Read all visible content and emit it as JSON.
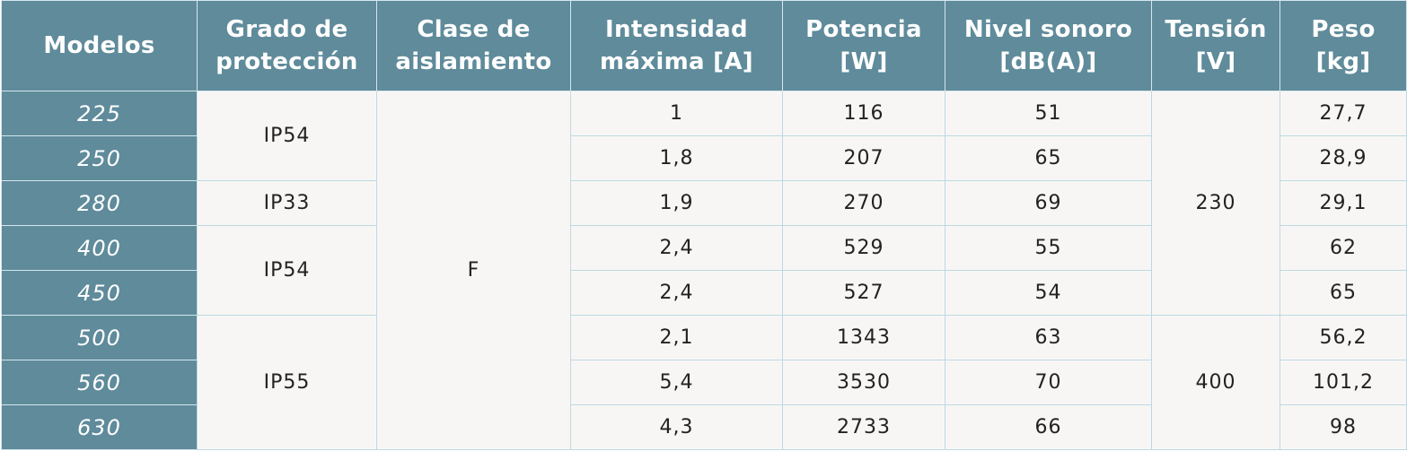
{
  "table": {
    "headers": [
      "Modelos",
      "Grado de\nprotección",
      "Clase de\naislamiento",
      "Intensidad\nmáxima [A]",
      "Potencia\n[W]",
      "Nivel sonoro\n[dB(A)]",
      "Tensión\n[V]",
      "Peso\n[kg]"
    ],
    "models": [
      "225",
      "250",
      "280",
      "400",
      "450",
      "500",
      "560",
      "630"
    ],
    "protection": [
      "IP54",
      "IP33",
      "IP54",
      "IP55"
    ],
    "insulation": "F",
    "current": [
      "1",
      "1,8",
      "1,9",
      "2,4",
      "2,4",
      "2,1",
      "5,4",
      "4,3"
    ],
    "power": [
      "116",
      "207",
      "270",
      "529",
      "527",
      "1343",
      "3530",
      "2733"
    ],
    "noise": [
      "51",
      "65",
      "69",
      "55",
      "54",
      "63",
      "70",
      "66"
    ],
    "voltage": [
      "230",
      "400"
    ],
    "weight": [
      "27,7",
      "28,9",
      "29,1",
      "62",
      "65",
      "56,2",
      "101,2",
      "98"
    ]
  }
}
